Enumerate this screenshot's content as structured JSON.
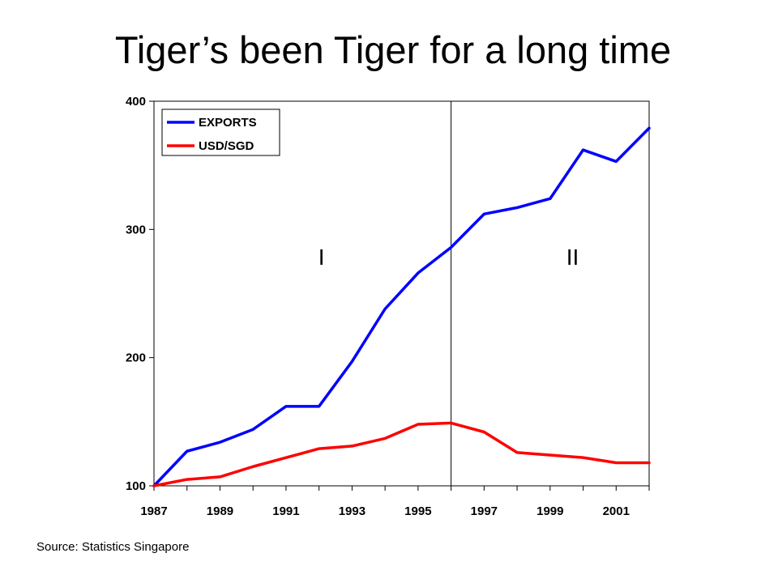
{
  "slide": {
    "title": "Tiger’s been Tiger for a long time",
    "source": "Source: Statistics Singapore"
  },
  "chart_data": {
    "type": "line",
    "title": "",
    "xlabel": "",
    "ylabel": "",
    "x": [
      1987,
      1988,
      1989,
      1990,
      1991,
      1992,
      1993,
      1994,
      1995,
      1996,
      1997,
      1998,
      1999,
      2000,
      2001,
      2002
    ],
    "x_tick_labels": [
      "1987",
      "1989",
      "1991",
      "1993",
      "1995",
      "1997",
      "1999",
      "2001"
    ],
    "y_tick_labels": [
      "400",
      "300",
      "200",
      "100"
    ],
    "xlim": [
      1987,
      2002
    ],
    "ylim": [
      100,
      400
    ],
    "grid": false,
    "legend_position": "top-left",
    "series": [
      {
        "name": "EXPORTS",
        "color": "#0000ff",
        "values": [
          100,
          127,
          134,
          144,
          162,
          162,
          197,
          238,
          266,
          286,
          312,
          317,
          324,
          362,
          353,
          379
        ]
      },
      {
        "name": "USD/SGD",
        "color": "#ff0000",
        "values": [
          100,
          105,
          107,
          115,
          122,
          129,
          131,
          137,
          148,
          149,
          142,
          126,
          124,
          122,
          118,
          118
        ]
      }
    ],
    "divider_at_x": 1996,
    "regions": [
      {
        "label": "I",
        "x": 1992
      },
      {
        "label": "II",
        "x": 2000
      }
    ]
  }
}
